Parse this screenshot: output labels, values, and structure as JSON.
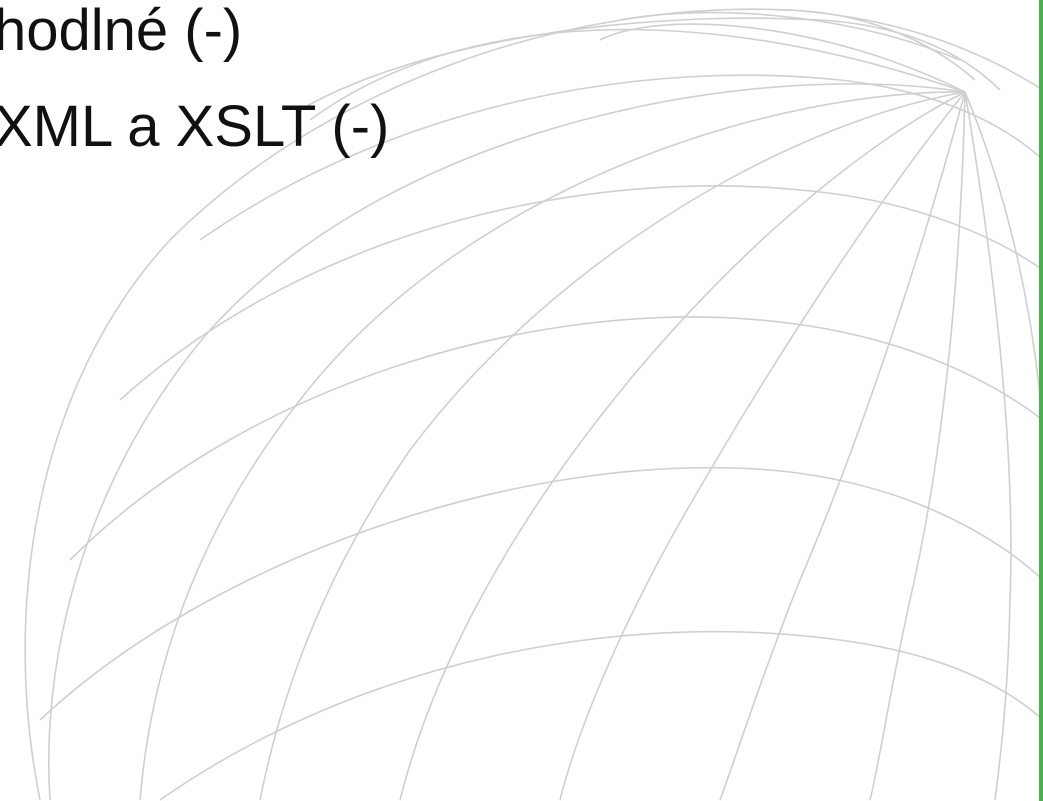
{
  "slide": {
    "lines": [
      "hodlné (-)",
      "XML a XSLT (-)"
    ]
  },
  "colors": {
    "text": "#111111",
    "globe_lines": "#cfcfcf",
    "side_bar": "#4caf50"
  },
  "icons": {
    "background": "wireframe-globe"
  }
}
